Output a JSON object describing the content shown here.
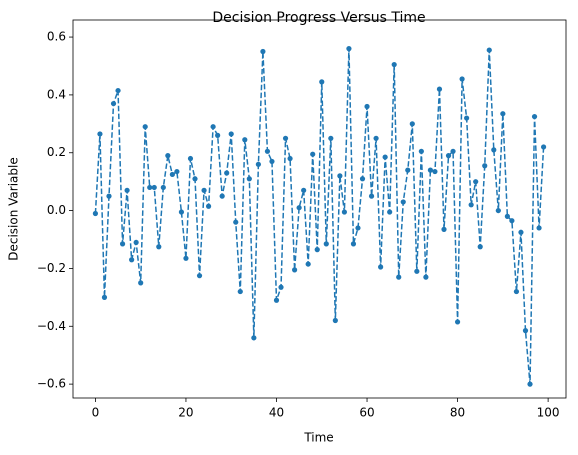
{
  "chart_data": {
    "type": "line",
    "title": "Decision Progress Versus Time",
    "x_label": "Time",
    "y_label": "Decision Variable",
    "x": [
      0,
      1,
      2,
      3,
      4,
      5,
      6,
      7,
      8,
      9,
      10,
      11,
      12,
      13,
      14,
      15,
      16,
      17,
      18,
      19,
      20,
      21,
      22,
      23,
      24,
      25,
      26,
      27,
      28,
      29,
      30,
      31,
      32,
      33,
      34,
      35,
      36,
      37,
      38,
      39,
      40,
      41,
      42,
      43,
      44,
      45,
      46,
      47,
      48,
      49,
      50,
      51,
      52,
      53,
      54,
      55,
      56,
      57,
      58,
      59,
      60,
      61,
      62,
      63,
      64,
      65,
      66,
      67,
      68,
      69,
      70,
      71,
      72,
      73,
      74,
      75,
      76,
      77,
      78,
      79,
      80,
      81,
      82,
      83,
      84,
      85,
      86,
      87,
      88,
      89,
      90,
      91,
      92,
      93,
      94,
      95,
      96,
      97,
      98,
      99
    ],
    "series": [
      {
        "color": "#1f77b4",
        "line_style": "dashed",
        "marker": "circle",
        "values": [
          -0.01,
          0.265,
          -0.3,
          0.05,
          0.37,
          0.415,
          -0.115,
          0.07,
          -0.17,
          -0.11,
          -0.25,
          0.29,
          0.08,
          0.08,
          -0.125,
          0.08,
          0.19,
          0.125,
          0.135,
          -0.005,
          -0.165,
          0.18,
          0.11,
          -0.225,
          0.07,
          0.015,
          0.29,
          0.26,
          0.05,
          0.13,
          0.265,
          -0.04,
          -0.28,
          0.245,
          0.11,
          -0.44,
          0.16,
          0.55,
          0.205,
          0.17,
          -0.31,
          -0.265,
          0.25,
          0.18,
          -0.205,
          0.01,
          0.07,
          -0.185,
          0.195,
          -0.135,
          0.445,
          -0.115,
          0.25,
          -0.38,
          0.12,
          -0.005,
          0.56,
          -0.115,
          -0.06,
          0.11,
          0.36,
          0.05,
          0.25,
          -0.195,
          0.185,
          -0.005,
          0.505,
          -0.23,
          0.03,
          0.14,
          0.3,
          -0.21,
          0.205,
          -0.23,
          0.14,
          0.135,
          0.42,
          -0.065,
          0.19,
          0.205,
          -0.385,
          0.455,
          0.32,
          0.02,
          0.1,
          -0.125,
          0.155,
          0.555,
          0.21,
          0.0,
          0.335,
          -0.02,
          -0.035,
          -0.28,
          -0.075,
          -0.415,
          -0.6,
          0.325,
          -0.06,
          0.22
        ]
      }
    ],
    "xlim": [
      -4.95,
      103.95
    ],
    "ylim": [
      -0.648,
      0.659
    ],
    "xticks": [
      0,
      20,
      40,
      60,
      80,
      100
    ],
    "yticks": [
      {
        "value": -0.6,
        "label": "−0.6"
      },
      {
        "value": -0.4,
        "label": "−0.4"
      },
      {
        "value": -0.2,
        "label": "−0.2"
      },
      {
        "value": 0,
        "label": "0.0"
      },
      0.2,
      0.4,
      0.6
    ],
    "grid": false
  }
}
